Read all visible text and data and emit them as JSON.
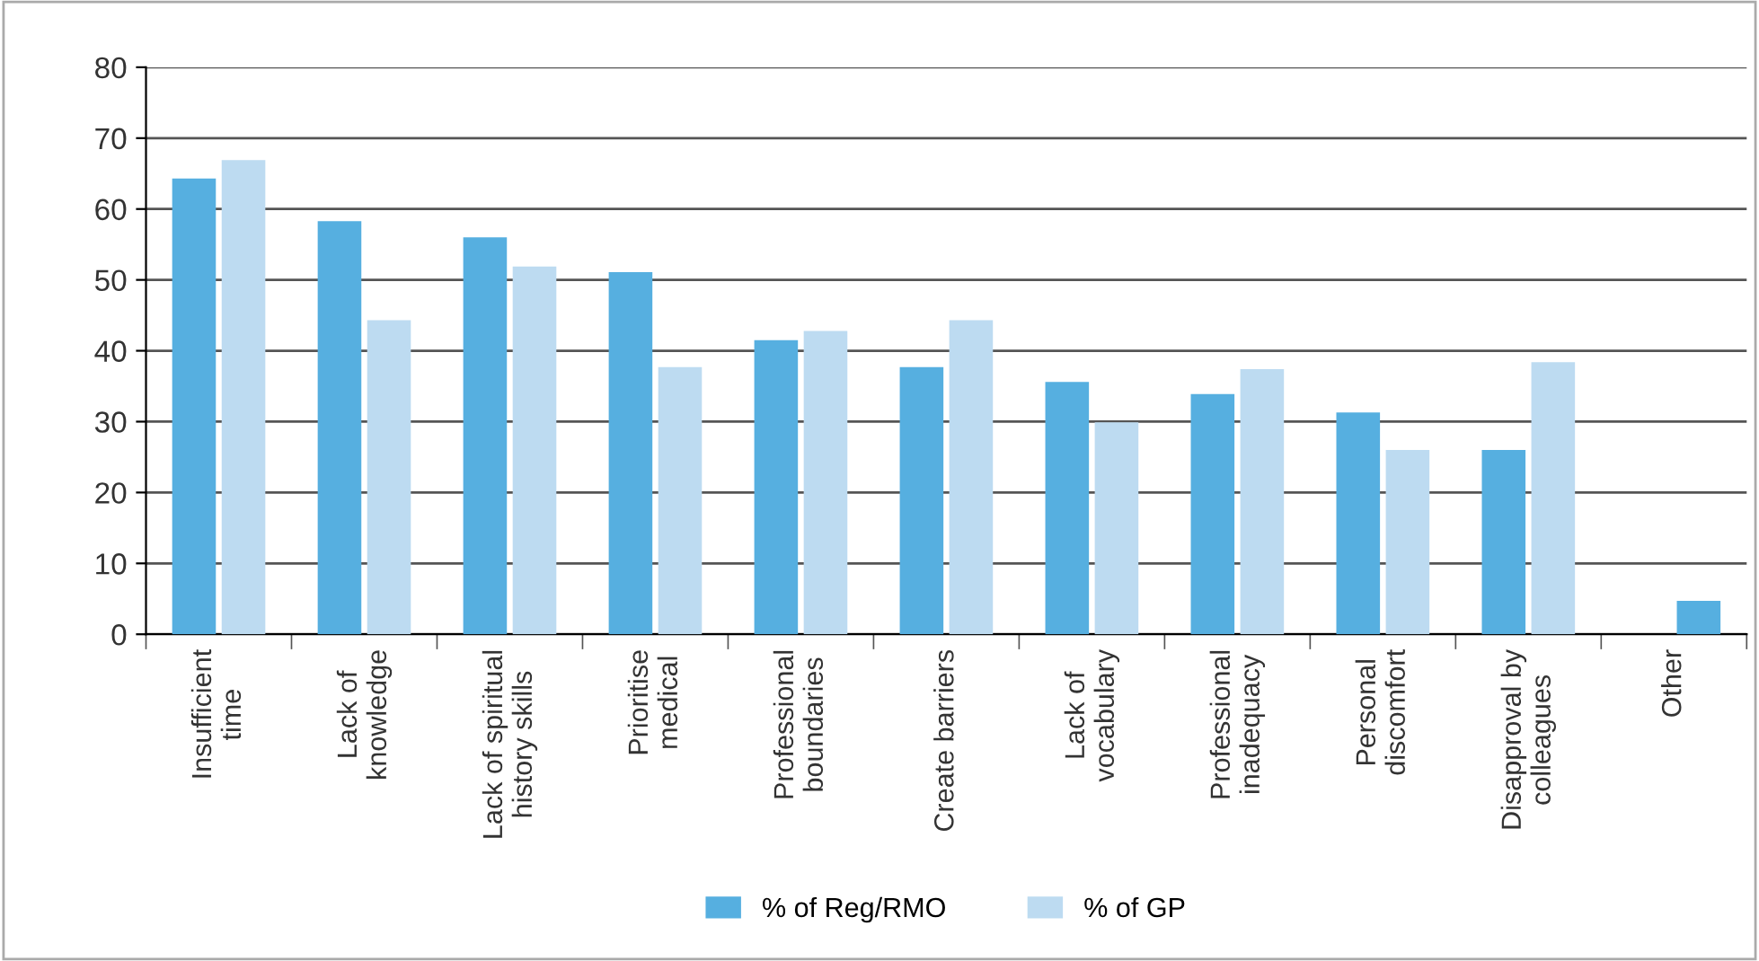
{
  "chart_data": {
    "type": "bar",
    "categories": [
      "Insufficient\ntime",
      "Lack of\nknowledge",
      "Lack of spiritual\nhistory skills",
      "Prioritise\nmedical",
      "Professional\nboundaries",
      "Create barriers",
      "Lack of\nvocabulary",
      "Professional\ninadequacy",
      "Personal\ndiscomfort",
      "Disapproval by\ncolleagues",
      "Other"
    ],
    "series": [
      {
        "name": "% of Reg/RMO",
        "color": "#56afe0",
        "values": [
          64.3,
          58.3,
          56.0,
          51.1,
          41.5,
          37.7,
          35.6,
          33.9,
          31.3,
          26.0,
          null
        ]
      },
      {
        "name": "% of GP",
        "color": "#bddbf1",
        "colors": [
          "#bddbf1",
          "#bddbf1",
          "#bddbf1",
          "#bddbf1",
          "#bddbf1",
          "#bddbf1",
          "#bddbf1",
          "#bddbf1",
          "#bddbf1",
          "#bddbf1",
          "#56afe0"
        ],
        "values": [
          66.9,
          44.3,
          51.9,
          37.7,
          42.8,
          44.3,
          29.9,
          37.4,
          26.0,
          38.4,
          4.7
        ]
      }
    ],
    "ylim": [
      0,
      80
    ],
    "yticks": [
      0,
      10,
      20,
      30,
      40,
      50,
      60,
      70,
      80
    ],
    "grid": "y",
    "legend": "bottom"
  }
}
